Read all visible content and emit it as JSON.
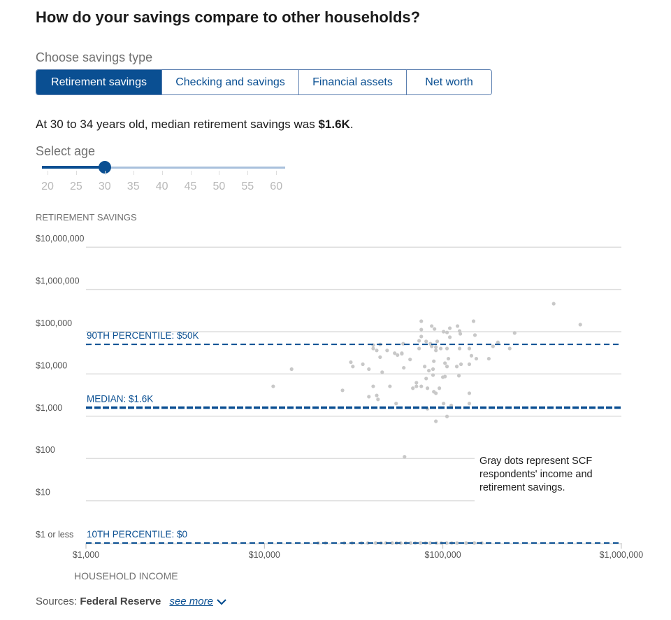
{
  "title": "How do your savings compare to other households?",
  "savings_type": {
    "label": "Choose savings type",
    "tabs": [
      {
        "label": "Retirement savings",
        "active": true
      },
      {
        "label": "Checking and savings",
        "active": false
      },
      {
        "label": "Financial assets",
        "active": false
      },
      {
        "label": "Net worth",
        "active": false
      }
    ]
  },
  "summary": {
    "prefix": "At 30 to 34 years old, median retirement savings was ",
    "value": "$1.6K",
    "suffix": "."
  },
  "age_slider": {
    "label": "Select age",
    "ticks": [
      "20",
      "25",
      "30",
      "35",
      "40",
      "45",
      "50",
      "55",
      "60"
    ],
    "value": 30,
    "min": 20,
    "max": 60
  },
  "colors": {
    "accent": "#0a4f92",
    "track": "#a9c1dc",
    "dot": "#c8c8c8",
    "grid": "#dddddd"
  },
  "chart_data": {
    "type": "scatter",
    "ylabel": "RETIREMENT SAVINGS",
    "xlabel": "HOUSEHOLD INCOME",
    "xscale": "log",
    "yscale": "log",
    "xlim": [
      1000,
      1000000
    ],
    "ylim": [
      1,
      10000000
    ],
    "x_ticks": [
      {
        "value": 1000,
        "label": "$1,000"
      },
      {
        "value": 10000,
        "label": "$10,000"
      },
      {
        "value": 100000,
        "label": "$100,000"
      },
      {
        "value": 1000000,
        "label": "$1,000,000"
      }
    ],
    "y_ticks": [
      {
        "value": 10000000,
        "label": "$10,000,000"
      },
      {
        "value": 1000000,
        "label": "$1,000,000"
      },
      {
        "value": 100000,
        "label": "$100,000"
      },
      {
        "value": 10000,
        "label": "$10,000"
      },
      {
        "value": 1000,
        "label": "$1,000"
      },
      {
        "value": 100,
        "label": "$100"
      },
      {
        "value": 10,
        "label": "$10"
      },
      {
        "value": 1,
        "label": "$1 or less"
      }
    ],
    "grid": true,
    "reference_lines": [
      {
        "label": "90TH PERCENTILE: $50K",
        "value": 50000
      },
      {
        "label": "MEDIAN: $1.6K",
        "value": 1600
      },
      {
        "label": "10TH PERCENTILE: $0",
        "value": 0
      }
    ],
    "annotation": [
      "Gray dots represent SCF",
      "respondents' income and",
      "retirement savings."
    ],
    "points": [
      [
        418000,
        459000
      ],
      [
        589000,
        147000
      ],
      [
        11200,
        5100
      ],
      [
        14200,
        13000
      ],
      [
        75700,
        177000
      ],
      [
        75700,
        112000
      ],
      [
        75700,
        77000
      ],
      [
        73600,
        61000
      ],
      [
        73600,
        40000
      ],
      [
        86600,
        136000
      ],
      [
        89800,
        116000
      ],
      [
        100900,
        100000
      ],
      [
        105500,
        96000
      ],
      [
        109400,
        121000
      ],
      [
        109400,
        74000
      ],
      [
        120800,
        136000
      ],
      [
        124100,
        104000
      ],
      [
        125300,
        89000
      ],
      [
        148600,
        177000
      ],
      [
        151300,
        83000
      ],
      [
        252500,
        93000
      ],
      [
        203500,
        56000
      ],
      [
        191000,
        45000
      ],
      [
        237000,
        40000
      ],
      [
        181000,
        23000
      ],
      [
        154000,
        23000
      ],
      [
        144600,
        27000
      ],
      [
        140700,
        40000
      ],
      [
        140700,
        17000
      ],
      [
        124100,
        40000
      ],
      [
        126400,
        17000
      ],
      [
        119700,
        15000
      ],
      [
        123000,
        9100
      ],
      [
        107400,
        23000
      ],
      [
        105500,
        15000
      ],
      [
        102800,
        18000
      ],
      [
        105500,
        40000
      ],
      [
        97300,
        40000
      ],
      [
        93000,
        59000
      ],
      [
        91400,
        43000
      ],
      [
        91400,
        36000
      ],
      [
        86600,
        45000
      ],
      [
        85100,
        52000
      ],
      [
        80600,
        59000
      ],
      [
        89000,
        20000
      ],
      [
        88100,
        13000
      ],
      [
        83500,
        12000
      ],
      [
        79100,
        15000
      ],
      [
        88100,
        9400
      ],
      [
        80600,
        7800
      ],
      [
        100000,
        8400
      ],
      [
        102800,
        8700
      ],
      [
        71100,
        6200
      ],
      [
        71100,
        5100
      ],
      [
        67900,
        4600
      ],
      [
        75700,
        5100
      ],
      [
        82000,
        4600
      ],
      [
        95600,
        4600
      ],
      [
        89000,
        3800
      ],
      [
        91400,
        3500
      ],
      [
        100900,
        2000
      ],
      [
        111400,
        1800
      ],
      [
        140700,
        3500
      ],
      [
        140700,
        2000
      ],
      [
        82000,
        1500
      ],
      [
        105500,
        990
      ],
      [
        91400,
        760
      ],
      [
        65500,
        22000
      ],
      [
        60400,
        14000
      ],
      [
        59900,
        52000
      ],
      [
        58900,
        31000
      ],
      [
        58900,
        30000
      ],
      [
        55700,
        28000
      ],
      [
        53700,
        31000
      ],
      [
        48700,
        36000
      ],
      [
        44500,
        50000
      ],
      [
        42600,
        36000
      ],
      [
        40700,
        40000
      ],
      [
        40700,
        48000
      ],
      [
        44500,
        25000
      ],
      [
        45700,
        11000
      ],
      [
        38500,
        13000
      ],
      [
        35600,
        17000
      ],
      [
        30500,
        19000
      ],
      [
        31300,
        15000
      ],
      [
        27400,
        4100
      ],
      [
        40700,
        5100
      ],
      [
        50500,
        5100
      ],
      [
        38500,
        2900
      ],
      [
        42600,
        3100
      ],
      [
        43300,
        2500
      ],
      [
        54700,
        2000
      ],
      [
        61000,
        110
      ],
      [
        20000,
        0
      ],
      [
        22000,
        0
      ],
      [
        28000,
        0
      ],
      [
        31000,
        0
      ],
      [
        35000,
        0
      ],
      [
        38000,
        0
      ],
      [
        42000,
        0
      ],
      [
        45000,
        0
      ],
      [
        48000,
        0
      ],
      [
        52000,
        0
      ],
      [
        55000,
        0
      ],
      [
        58000,
        0
      ],
      [
        62000,
        0
      ],
      [
        66000,
        0
      ],
      [
        70000,
        0
      ],
      [
        75000,
        0
      ],
      [
        80000,
        0
      ],
      [
        85000,
        0
      ],
      [
        92000,
        0
      ],
      [
        98000,
        0
      ],
      [
        105000,
        0
      ],
      [
        112000,
        0
      ],
      [
        120000,
        0
      ],
      [
        135000,
        0
      ],
      [
        150000,
        0
      ],
      [
        165000,
        0
      ]
    ]
  },
  "sources": {
    "label": "Sources:",
    "name": "Federal Reserve",
    "more": "see more"
  }
}
